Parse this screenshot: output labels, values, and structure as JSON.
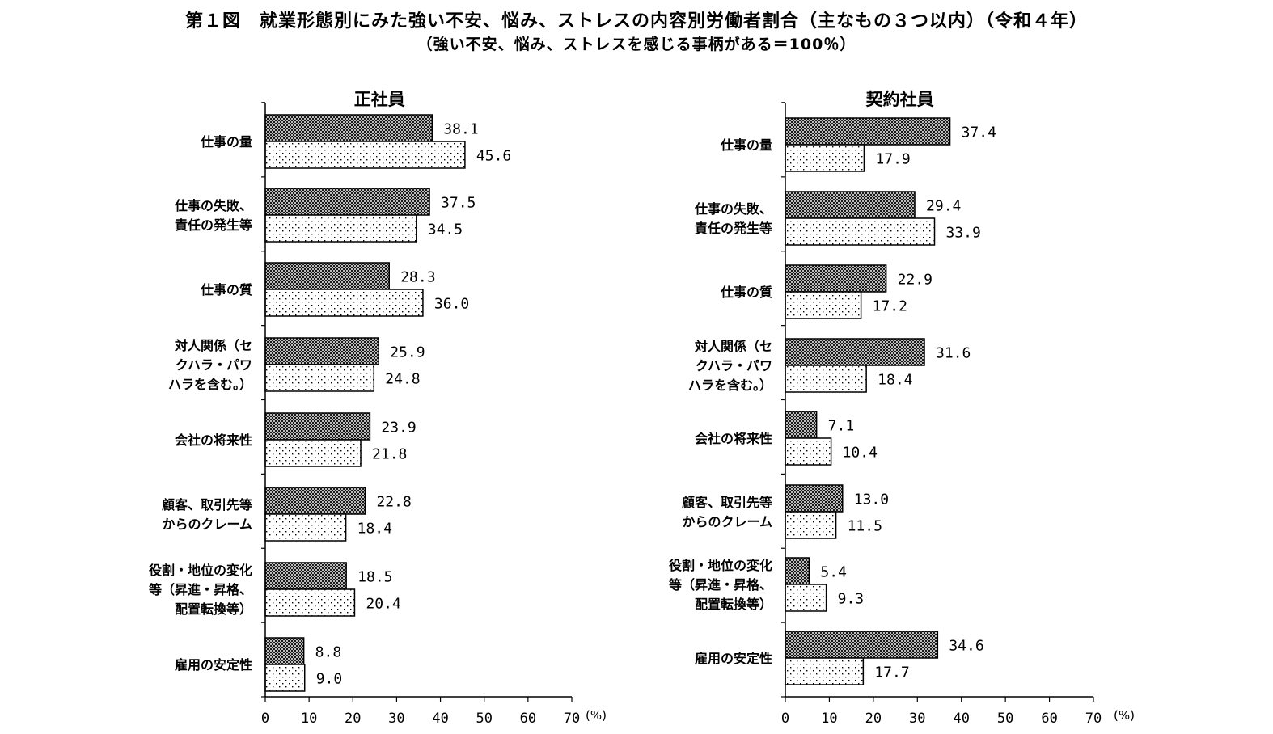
{
  "title": "第１図　就業形態別にみた強い不安、悩み、ストレスの内容別労働者割合（主なもの３つ以内）（令和４年）",
  "subtitle": "（強い不安、悩み、ストレスを感じる事柄がある＝100％）",
  "colors": {
    "series_a_fill": "crosshatch-dark",
    "series_b_fill": "dotted-white",
    "axis": "#000000"
  },
  "chart_data": [
    {
      "type": "bar",
      "orientation": "horizontal",
      "title": "正社員",
      "categories": [
        [
          "仕事の量"
        ],
        [
          "仕事の失敗、",
          "責任の発生等"
        ],
        [
          "仕事の質"
        ],
        [
          "対人関係（セ",
          "クハラ・パワ",
          "ハラを含む。）"
        ],
        [
          "会社の将来性"
        ],
        [
          "顧客、取引先等",
          "からのクレーム"
        ],
        [
          "役割・地位の変化",
          "等（昇進・昇格、",
          "配置転換等）"
        ],
        [
          "雇用の安定性"
        ]
      ],
      "series": [
        {
          "values": [
            38.1,
            37.5,
            28.3,
            25.9,
            23.9,
            22.8,
            18.5,
            8.8
          ],
          "labels": [
            "38.1",
            "37.5",
            "28.3",
            "25.9",
            "23.9",
            "22.8",
            "18.5",
            "8.8"
          ]
        },
        {
          "values": [
            45.6,
            34.5,
            36.0,
            24.8,
            21.8,
            18.4,
            20.4,
            9.0
          ],
          "labels": [
            "45.6",
            "34.5",
            "36.0",
            "24.8",
            "21.8",
            "18.4",
            "20.4",
            "9.0"
          ]
        }
      ],
      "xlim": [
        0,
        70
      ],
      "xticks": [
        "0",
        "10",
        "20",
        "30",
        "40",
        "50",
        "60",
        "70"
      ],
      "unit": "(%)",
      "grid": false
    },
    {
      "type": "bar",
      "orientation": "horizontal",
      "title": "契約社員",
      "categories": [
        [
          "仕事の量"
        ],
        [
          "仕事の失敗、",
          "責任の発生等"
        ],
        [
          "仕事の質"
        ],
        [
          "対人関係（セ",
          "クハラ・パワ",
          "ハラを含む。）"
        ],
        [
          "会社の将来性"
        ],
        [
          "顧客、取引先等",
          "からのクレーム"
        ],
        [
          "役割・地位の変化",
          "等（昇進・昇格、",
          "配置転換等）"
        ],
        [
          "雇用の安定性"
        ]
      ],
      "series": [
        {
          "values": [
            37.4,
            29.4,
            22.9,
            31.6,
            7.1,
            13.0,
            5.4,
            34.6
          ],
          "labels": [
            "37.4",
            "29.4",
            "22.9",
            "31.6",
            "7.1",
            "13.0",
            "5.4",
            "34.6"
          ]
        },
        {
          "values": [
            17.9,
            33.9,
            17.2,
            18.4,
            10.4,
            11.5,
            9.3,
            17.7
          ],
          "labels": [
            "17.9",
            "33.9",
            "17.2",
            "18.4",
            "10.4",
            "11.5",
            "9.3",
            "17.7"
          ]
        }
      ],
      "xlim": [
        0,
        70
      ],
      "xticks": [
        "0",
        "10",
        "20",
        "30",
        "40",
        "50",
        "60",
        "70"
      ],
      "unit": "(%)",
      "grid": false
    }
  ]
}
